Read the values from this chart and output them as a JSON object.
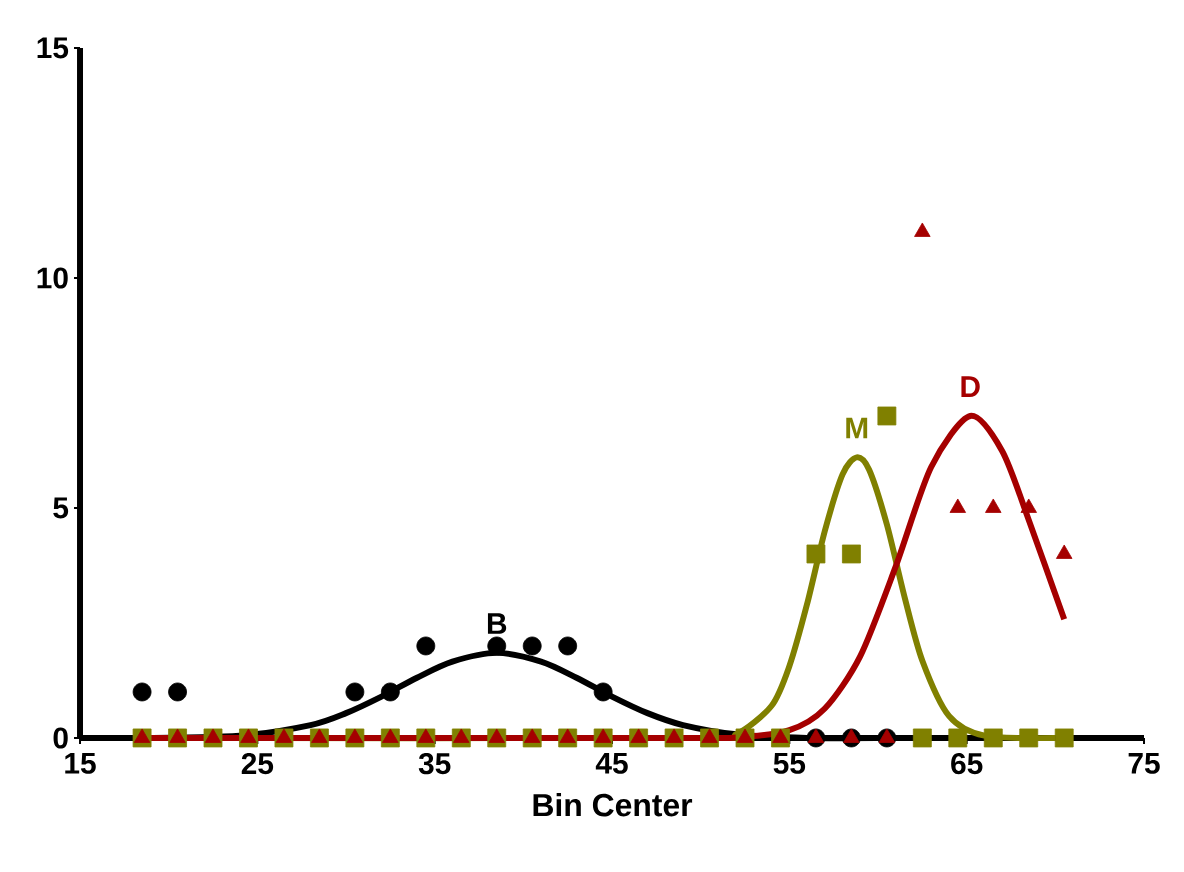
{
  "chart_data": {
    "type": "scatter",
    "xlabel": "Bin Center",
    "xlim": [
      15,
      75
    ],
    "xticks": [
      15,
      25,
      35,
      45,
      55,
      65,
      75
    ],
    "ylim": [
      0,
      15
    ],
    "yticks": [
      0,
      5,
      10,
      15
    ],
    "grid": false,
    "series": [
      {
        "color": "#000000",
        "marker": "circle",
        "x": [
          18.5,
          20.5,
          22.5,
          24.5,
          26.5,
          28.5,
          30.5,
          32.5,
          34.5,
          36.5,
          38.5,
          40.5,
          42.5,
          44.5,
          46.5,
          48.5,
          50.5,
          52.5,
          54.5,
          56.5,
          58.5,
          60.5
        ],
        "values": [
          1,
          1,
          null,
          null,
          null,
          null,
          1,
          1,
          2,
          null,
          2,
          2,
          2,
          1,
          null,
          null,
          null,
          null,
          null,
          0,
          0,
          0
        ]
      },
      {
        "color": "#808000",
        "marker": "square",
        "x": [
          18.5,
          20.5,
          22.5,
          24.5,
          26.5,
          28.5,
          30.5,
          32.5,
          34.5,
          36.5,
          38.5,
          40.5,
          42.5,
          44.5,
          46.5,
          48.5,
          50.5,
          52.5,
          54.5,
          56.5,
          58.5,
          60.5,
          62.5,
          64.5,
          66.5,
          68.5,
          70.5
        ],
        "values": [
          0,
          0,
          0,
          0,
          0,
          0,
          0,
          0,
          0,
          0,
          0,
          0,
          0,
          0,
          0,
          0,
          0,
          0,
          0,
          4,
          4,
          7,
          0,
          0,
          0,
          0,
          0
        ]
      },
      {
        "color": "#a50000",
        "marker": "triangle",
        "x": [
          18.5,
          20.5,
          22.5,
          24.5,
          26.5,
          28.5,
          30.5,
          32.5,
          34.5,
          36.5,
          38.5,
          40.5,
          42.5,
          44.5,
          46.5,
          48.5,
          50.5,
          52.5,
          54.5,
          56.5,
          58.5,
          60.5,
          62.5,
          64.5,
          66.5,
          68.5,
          70.5
        ],
        "values": [
          0,
          0,
          0,
          0,
          0,
          0,
          0,
          0,
          0,
          0,
          0,
          0,
          0,
          0,
          0,
          0,
          0,
          0,
          0,
          0,
          0,
          0,
          11,
          5,
          5,
          5,
          4
        ]
      },
      {
        "type": "line",
        "color": "#000000",
        "marker": "none",
        "x": [
          18,
          24,
          28,
          30,
          32,
          34,
          36,
          38.5,
          41,
          43,
          45,
          47,
          49,
          52,
          56,
          62,
          70
        ],
        "values": [
          0,
          0.05,
          0.28,
          0.54,
          0.9,
          1.31,
          1.66,
          1.85,
          1.66,
          1.31,
          0.9,
          0.54,
          0.28,
          0.08,
          0,
          0,
          0
        ]
      },
      {
        "type": "line",
        "color": "#808000",
        "marker": "none",
        "x": [
          18,
          50,
          52,
          54,
          55,
          56,
          57,
          58,
          58.8,
          59.5,
          60.5,
          61.5,
          62.5,
          64,
          66,
          70
        ],
        "values": [
          0,
          0,
          0.08,
          0.7,
          1.56,
          2.91,
          4.5,
          5.73,
          6.1,
          5.83,
          4.64,
          3.06,
          1.68,
          0.48,
          0.05,
          0
        ]
      },
      {
        "type": "line",
        "color": "#a50000",
        "marker": "none",
        "x": [
          18,
          48,
          52,
          55,
          57,
          59,
          61,
          63,
          65.2,
          67,
          68.5,
          70.5
        ],
        "values": [
          0,
          0,
          0.01,
          0.17,
          0.64,
          1.78,
          3.73,
          5.89,
          7,
          6.24,
          4.74,
          2.58
        ]
      }
    ],
    "annotations": [
      "B",
      "M",
      "D"
    ]
  }
}
